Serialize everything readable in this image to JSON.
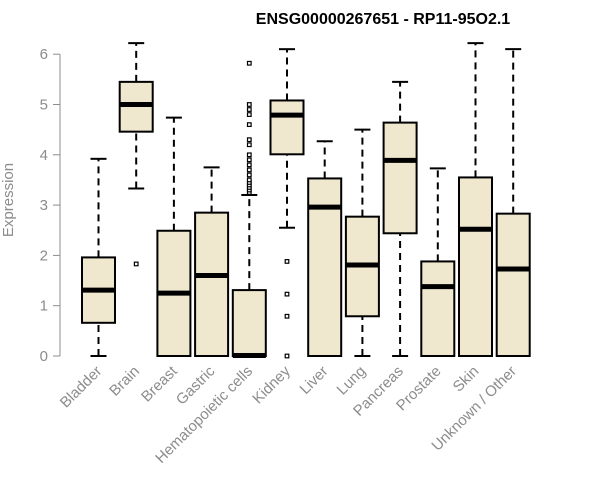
{
  "chart_data": {
    "type": "boxplot",
    "title": "ENSG00000267651 - RP11-95O2.1",
    "xlabel": "",
    "ylabel": "Expression",
    "ylim": [
      0,
      6.3
    ],
    "yticks": [
      0,
      1,
      2,
      3,
      4,
      5,
      6
    ],
    "grid": false,
    "colors": {
      "box_fill": "#efe8cf",
      "stroke": "#000000",
      "axis": "#8c8c8c"
    },
    "categories": [
      "Bladder",
      "Brain",
      "Breast",
      "Gastric",
      "Hematopoietic cells",
      "Kidney",
      "Liver",
      "Lung",
      "Pancreas",
      "Prostate",
      "Skin",
      "Unknown / Other"
    ],
    "boxes": [
      {
        "name": "Bladder",
        "whisker_low": 0,
        "q1": 0.66,
        "median": 1.31,
        "q3": 1.96,
        "whisker_high": 3.92,
        "outliers": []
      },
      {
        "name": "Brain",
        "whisker_low": 3.33,
        "q1": 4.46,
        "median": 5.0,
        "q3": 5.45,
        "whisker_high": 6.22,
        "outliers": [
          1.83
        ]
      },
      {
        "name": "Breast",
        "whisker_low": 0,
        "q1": 0,
        "median": 1.25,
        "q3": 2.49,
        "whisker_high": 4.74,
        "outliers": []
      },
      {
        "name": "Gastric",
        "whisker_low": 0,
        "q1": 0,
        "median": 1.6,
        "q3": 2.85,
        "whisker_high": 3.75,
        "outliers": []
      },
      {
        "name": "Hematopoietic cells",
        "whisker_low": 0,
        "q1": 0,
        "median": 0.01,
        "q3": 1.31,
        "whisker_high": 3.2,
        "outliers": [
          3.25,
          3.3,
          3.35,
          3.4,
          3.45,
          3.5,
          3.6,
          3.7,
          3.8,
          3.9,
          4.0,
          4.2,
          4.3,
          4.6,
          4.8,
          4.9,
          5.0,
          5.82
        ]
      },
      {
        "name": "Kidney",
        "whisker_low": 2.55,
        "q1": 4.01,
        "median": 4.79,
        "q3": 5.08,
        "whisker_high": 6.1,
        "outliers": [
          1.88,
          1.23,
          0.79,
          0.0
        ]
      },
      {
        "name": "Liver",
        "whisker_low": 0,
        "q1": 0,
        "median": 2.96,
        "q3": 3.53,
        "whisker_high": 4.27,
        "outliers": []
      },
      {
        "name": "Lung",
        "whisker_low": 0,
        "q1": 0.79,
        "median": 1.81,
        "q3": 2.77,
        "whisker_high": 4.5,
        "outliers": []
      },
      {
        "name": "Pancreas",
        "whisker_low": 0,
        "q1": 2.44,
        "median": 3.89,
        "q3": 4.64,
        "whisker_high": 5.45,
        "outliers": []
      },
      {
        "name": "Prostate",
        "whisker_low": 0,
        "q1": 0,
        "median": 1.38,
        "q3": 1.88,
        "whisker_high": 3.73,
        "outliers": []
      },
      {
        "name": "Skin",
        "whisker_low": 0,
        "q1": 0,
        "median": 2.52,
        "q3": 3.55,
        "whisker_high": 6.22,
        "outliers": []
      },
      {
        "name": "Unknown / Other",
        "whisker_low": 0,
        "q1": 0,
        "median": 1.73,
        "q3": 2.83,
        "whisker_high": 6.1,
        "outliers": []
      }
    ]
  }
}
